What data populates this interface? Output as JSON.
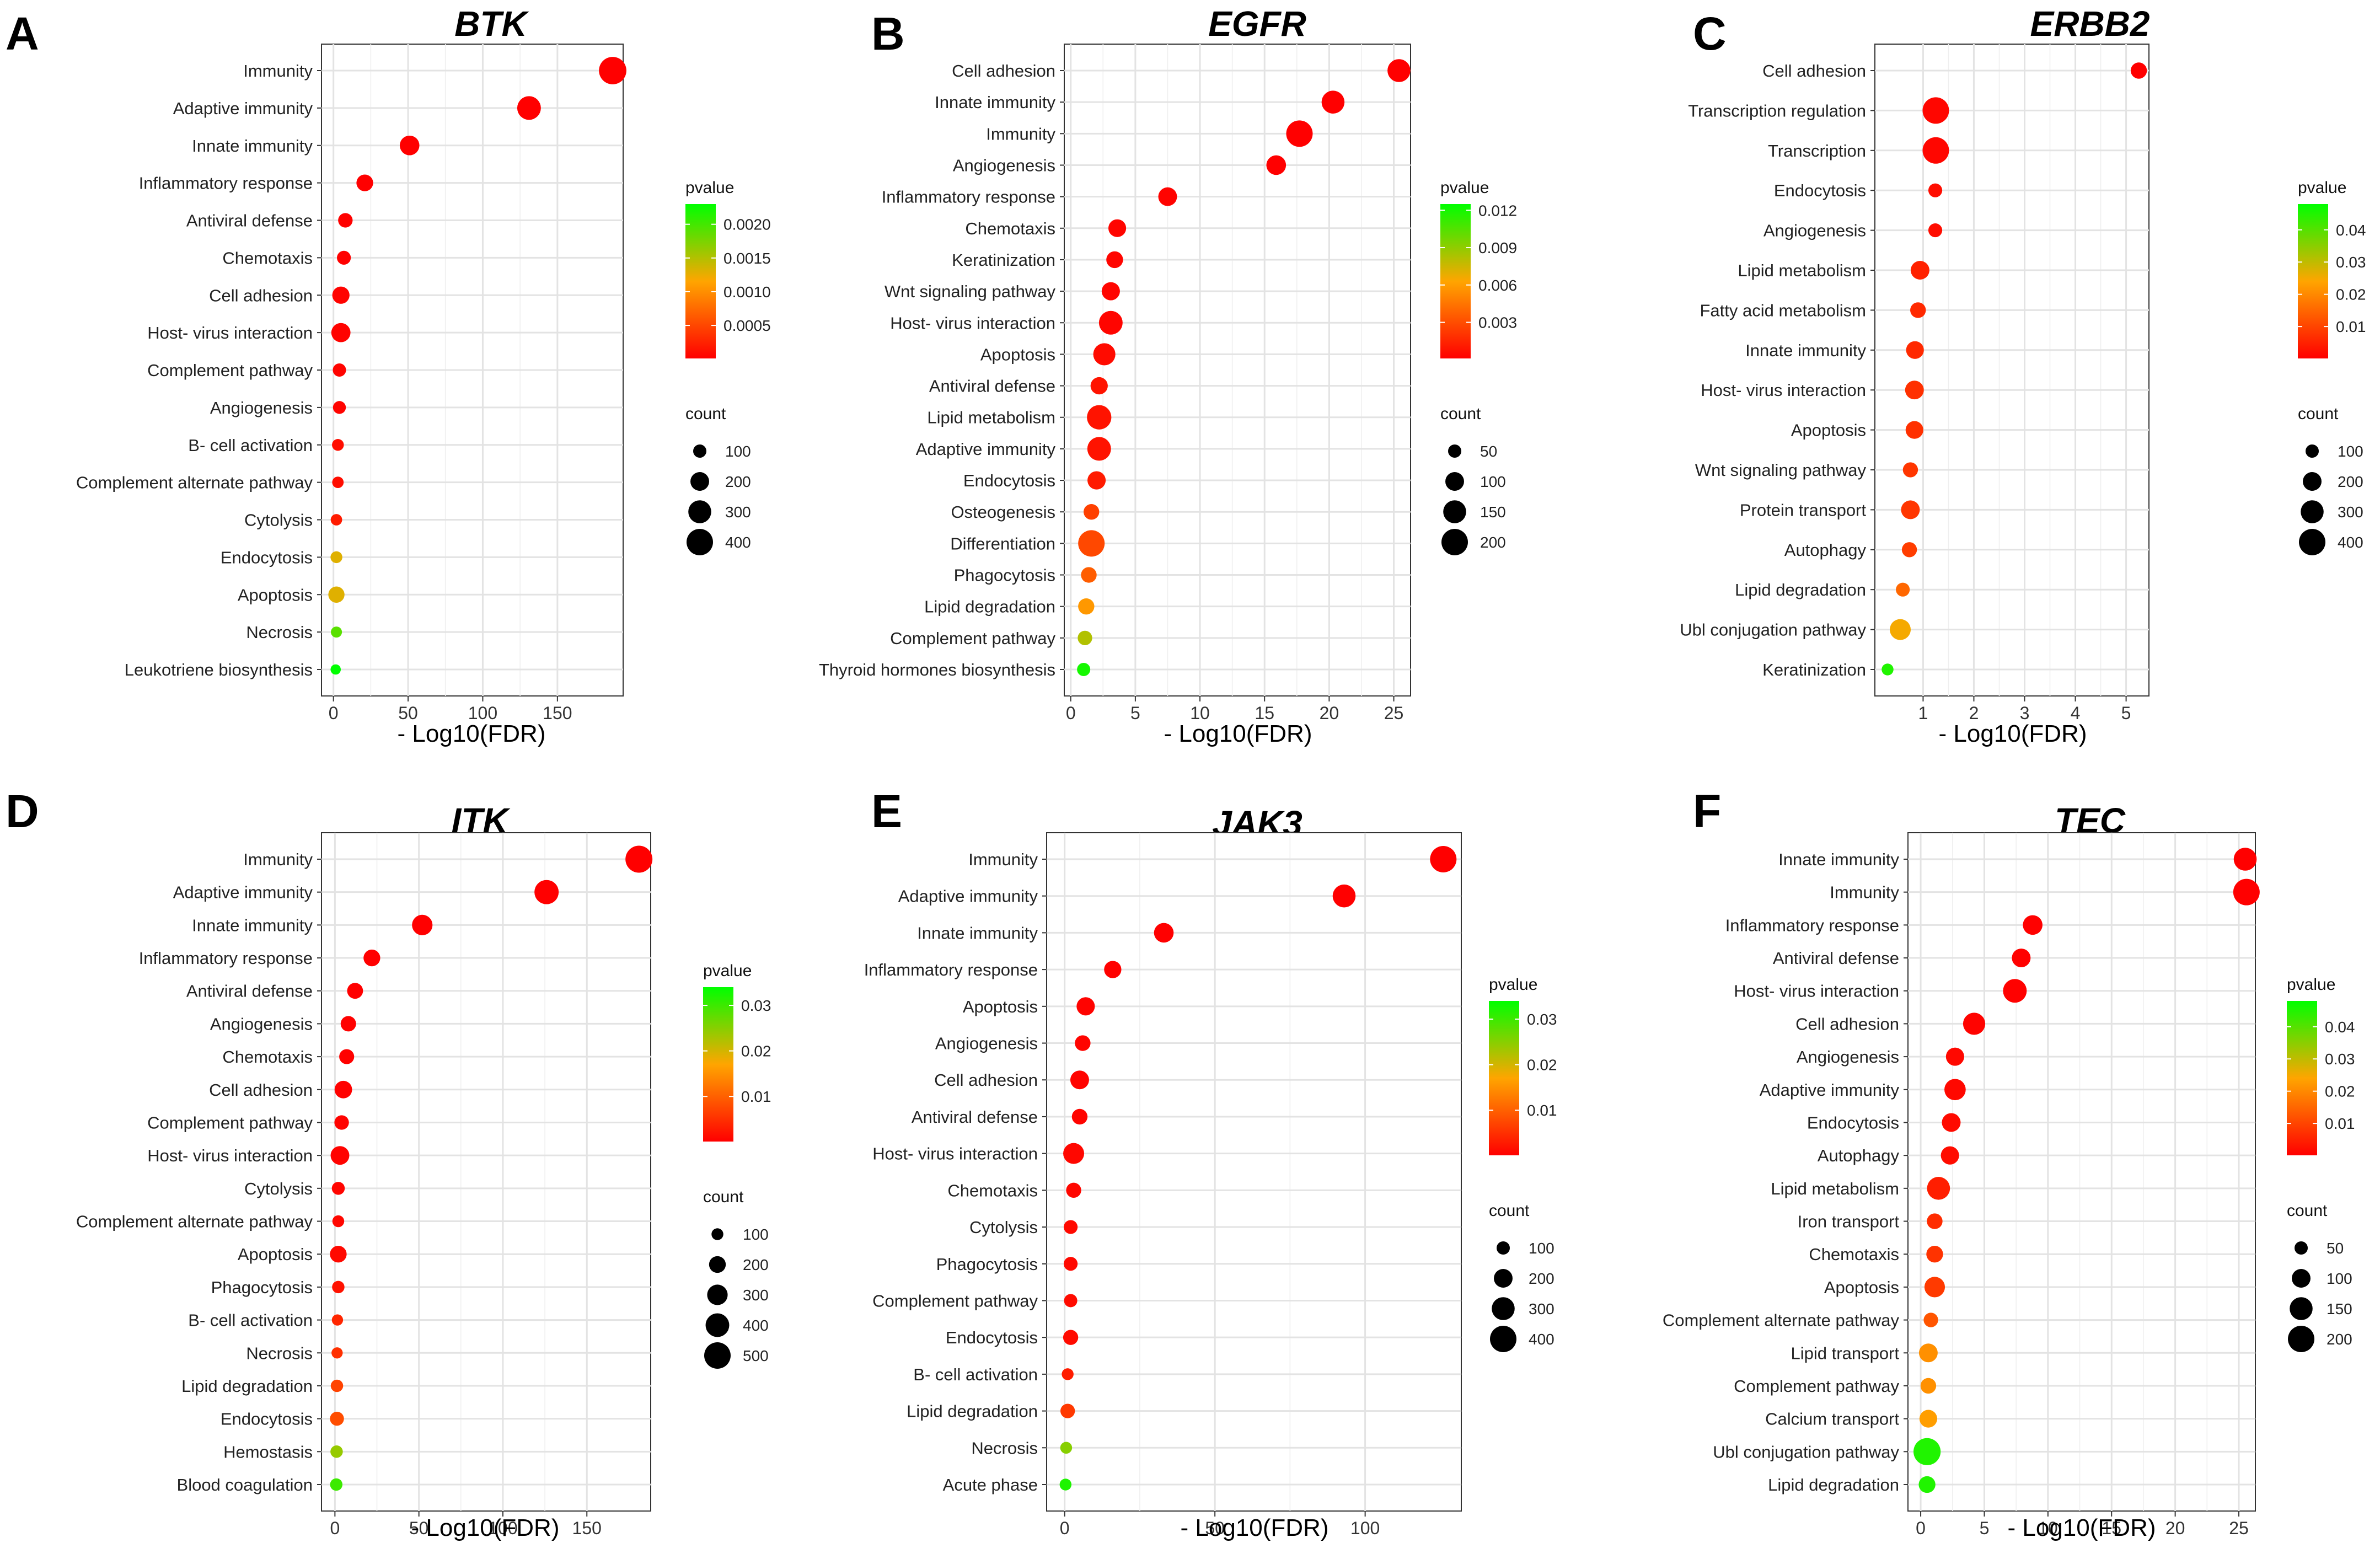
{
  "chart_data": [
    {
      "type": "scatter",
      "panel": "A",
      "title": "BTK",
      "xlabel": "- Log10(FDR)",
      "xlim": [
        -8,
        194
      ],
      "xticks": [
        0,
        50,
        100,
        150
      ],
      "tick_labels": [
        "0",
        "50",
        "100",
        "150"
      ],
      "categories": [
        "Immunity",
        "Adaptive immunity",
        "Innate immunity",
        "Inflammatory response",
        "Antiviral defense",
        "Chemotaxis",
        "Cell adhesion",
        "Host- virus interaction",
        "Complement pathway",
        "Angiogenesis",
        "B- cell activation",
        "Complement alternate pathway",
        "Cytolysis",
        "Endocytosis",
        "Apoptosis",
        "Necrosis",
        "Leukotriene biosynthesis"
      ],
      "x": [
        187,
        131,
        51,
        21,
        8,
        7,
        5,
        5,
        4,
        4,
        3,
        3,
        2,
        2,
        2,
        2,
        1.5
      ],
      "count": [
        430,
        320,
        220,
        160,
        120,
        110,
        170,
        210,
        100,
        95,
        80,
        75,
        75,
        80,
        150,
        70,
        60
      ],
      "pvalue": [
        1e-05,
        1e-05,
        1e-05,
        1e-05,
        2e-05,
        2e-05,
        3e-05,
        3e-05,
        4e-05,
        4e-05,
        0.0001,
        0.0001,
        0.0002,
        0.0013,
        0.0013,
        0.0019,
        0.0023
      ],
      "legend": {
        "pvalue_title": "pvalue",
        "pvalue_range": [
          1e-05,
          0.0023
        ],
        "pvalue_ticks": [
          0.002,
          0.0015,
          0.001,
          0.0005
        ],
        "pvalue_tick_labels": [
          "0.0020",
          "0.0015",
          "0.0010",
          "0.0005"
        ],
        "count_title": "count",
        "count_values": [
          100,
          200,
          300,
          400
        ],
        "count_labels": [
          "100",
          "200",
          "300",
          "400"
        ]
      }
    },
    {
      "type": "scatter",
      "panel": "B",
      "title": "EGFR",
      "xlabel": "- Log10(FDR)",
      "xlim": [
        -0.5,
        26.3
      ],
      "xticks": [
        0,
        5,
        10,
        15,
        20,
        25
      ],
      "tick_labels": [
        "0",
        "5",
        "10",
        "15",
        "20",
        "25"
      ],
      "categories": [
        "Cell adhesion",
        "Innate immunity",
        "Immunity",
        "Angiogenesis",
        "Inflammatory response",
        "Chemotaxis",
        "Keratinization",
        "Wnt signaling pathway",
        "Host- virus interaction",
        "Apoptosis",
        "Antiviral defense",
        "Lipid metabolism",
        "Adaptive immunity",
        "Endocytosis",
        "Osteogenesis",
        "Differentiation",
        "Phagocytosis",
        "Lipid degradation",
        "Complement pathway",
        "Thyroid hormones biosynthesis"
      ],
      "x": [
        25.4,
        20.3,
        17.7,
        15.9,
        7.5,
        3.6,
        3.4,
        3.1,
        3.1,
        2.6,
        2.2,
        2.2,
        2.2,
        2.0,
        1.6,
        1.6,
        1.4,
        1.2,
        1.1,
        1.0
      ],
      "count": [
        150,
        150,
        200,
        110,
        100,
        90,
        80,
        95,
        160,
        140,
        85,
        170,
        160,
        95,
        70,
        200,
        70,
        75,
        60,
        50
      ],
      "pvalue": [
        0.0001,
        0.0001,
        0.0001,
        0.0001,
        0.0002,
        0.0003,
        0.0003,
        0.0003,
        0.0003,
        0.0005,
        0.0008,
        0.0008,
        0.0008,
        0.0011,
        0.0025,
        0.0028,
        0.0036,
        0.0058,
        0.0082,
        0.012
      ],
      "legend": {
        "pvalue_title": "pvalue",
        "pvalue_range": [
          0.0001,
          0.0125
        ],
        "pvalue_ticks": [
          0.012,
          0.009,
          0.006,
          0.003
        ],
        "pvalue_tick_labels": [
          "0.012",
          "0.009",
          "0.006",
          "0.003"
        ],
        "count_title": "count",
        "count_values": [
          50,
          100,
          150,
          200
        ],
        "count_labels": [
          "50",
          "100",
          "150",
          "200"
        ]
      }
    },
    {
      "type": "scatter",
      "panel": "C",
      "title": "ERBB2",
      "xlabel": "- Log10(FDR)",
      "xlim": [
        0.05,
        5.45
      ],
      "xticks": [
        1,
        2,
        3,
        4,
        5
      ],
      "tick_labels": [
        "1",
        "2",
        "3",
        "4",
        "5"
      ],
      "categories": [
        "Cell adhesion",
        "Transcription regulation",
        "Transcription",
        "Endocytosis",
        "Angiogenesis",
        "Lipid metabolism",
        "Fatty acid metabolism",
        "Innate immunity",
        "Host- virus interaction",
        "Apoptosis",
        "Wnt signaling pathway",
        "Protein transport",
        "Autophagy",
        "Lipid degradation",
        "Ubl conjugation pathway",
        "Keratinization"
      ],
      "x": [
        5.25,
        1.25,
        1.25,
        1.24,
        1.24,
        0.94,
        0.9,
        0.84,
        0.83,
        0.83,
        0.75,
        0.75,
        0.73,
        0.6,
        0.55,
        0.3
      ],
      "count": [
        150,
        400,
        400,
        110,
        110,
        200,
        140,
        180,
        200,
        180,
        130,
        200,
        130,
        110,
        250,
        80
      ],
      "pvalue": [
        0.0001,
        0.001,
        0.001,
        0.002,
        0.002,
        0.005,
        0.006,
        0.006,
        0.007,
        0.007,
        0.008,
        0.008,
        0.009,
        0.015,
        0.025,
        0.045
      ],
      "legend": {
        "pvalue_title": "pvalue",
        "pvalue_range": [
          0.0001,
          0.048
        ],
        "pvalue_ticks": [
          0.04,
          0.03,
          0.02,
          0.01
        ],
        "pvalue_tick_labels": [
          "0.04",
          "0.03",
          "0.02",
          "0.01"
        ],
        "count_title": "count",
        "count_values": [
          100,
          200,
          300,
          400
        ],
        "count_labels": [
          "100",
          "200",
          "300",
          "400"
        ]
      }
    },
    {
      "type": "scatter",
      "panel": "D",
      "title": "ITK",
      "xlabel": "- Log10(FDR)",
      "xlim": [
        -8,
        188
      ],
      "xticks": [
        0,
        50,
        100,
        150
      ],
      "tick_labels": [
        "0",
        "50",
        "100",
        "150"
      ],
      "categories": [
        "Immunity",
        "Adaptive immunity",
        "Innate immunity",
        "Inflammatory response",
        "Antiviral defense",
        "Angiogenesis",
        "Chemotaxis",
        "Cell adhesion",
        "Complement pathway",
        "Host- virus interaction",
        "Cytolysis",
        "Complement alternate pathway",
        "Apoptosis",
        "Phagocytosis",
        "B- cell activation",
        "Necrosis",
        "Lipid degradation",
        "Endocytosis",
        "Hemostasis",
        "Blood coagulation"
      ],
      "x": [
        181,
        126,
        52,
        22,
        12,
        8,
        7,
        5,
        4,
        3,
        2,
        2,
        2,
        2,
        1.5,
        1.3,
        1.2,
        1.2,
        1,
        0.8
      ],
      "count": [
        520,
        420,
        300,
        200,
        180,
        170,
        160,
        220,
        150,
        250,
        120,
        100,
        200,
        110,
        90,
        90,
        110,
        140,
        110,
        110
      ],
      "pvalue": [
        0.0001,
        0.0001,
        0.0001,
        0.0001,
        0.0001,
        0.0002,
        0.0002,
        0.0003,
        0.0004,
        0.0004,
        0.0006,
        0.0008,
        0.001,
        0.002,
        0.004,
        0.005,
        0.007,
        0.008,
        0.024,
        0.03
      ],
      "legend": {
        "pvalue_title": "pvalue",
        "pvalue_range": [
          0.0001,
          0.034
        ],
        "pvalue_ticks": [
          0.03,
          0.02,
          0.01
        ],
        "pvalue_tick_labels": [
          "0.03",
          "0.02",
          "0.01"
        ],
        "count_title": "count",
        "count_values": [
          100,
          200,
          300,
          400,
          500
        ],
        "count_labels": [
          "100",
          "200",
          "300",
          "400",
          "500"
        ]
      }
    },
    {
      "type": "scatter",
      "panel": "E",
      "title": "JAK3",
      "xlabel": "- Log10(FDR)",
      "xlim": [
        -6,
        132
      ],
      "xticks": [
        0,
        50,
        100
      ],
      "tick_labels": [
        "0",
        "50",
        "100"
      ],
      "categories": [
        "Immunity",
        "Adaptive immunity",
        "Innate immunity",
        "Inflammatory response",
        "Apoptosis",
        "Angiogenesis",
        "Cell adhesion",
        "Antiviral defense",
        "Host- virus interaction",
        "Chemotaxis",
        "Cytolysis",
        "Phagocytosis",
        "Complement pathway",
        "Endocytosis",
        "B- cell activation",
        "Lipid degradation",
        "Necrosis",
        "Acute phase"
      ],
      "x": [
        126,
        93,
        33,
        16,
        7,
        6,
        5,
        5,
        3,
        3,
        2,
        2,
        2,
        2,
        1,
        1,
        0.5,
        0.3
      ],
      "count": [
        400,
        300,
        220,
        170,
        190,
        140,
        200,
        140,
        250,
        130,
        110,
        110,
        100,
        130,
        80,
        120,
        80,
        80
      ],
      "pvalue": [
        0.0001,
        0.0001,
        0.0001,
        0.0002,
        0.0004,
        0.0005,
        0.0005,
        0.0005,
        0.0008,
        0.0008,
        0.001,
        0.001,
        0.0012,
        0.0012,
        0.003,
        0.006,
        0.025,
        0.032
      ],
      "legend": {
        "pvalue_title": "pvalue",
        "pvalue_range": [
          0.0001,
          0.034
        ],
        "pvalue_ticks": [
          0.03,
          0.02,
          0.01
        ],
        "pvalue_tick_labels": [
          "0.03",
          "0.02",
          "0.01"
        ],
        "count_title": "count",
        "count_values": [
          100,
          200,
          300,
          400
        ],
        "count_labels": [
          "100",
          "200",
          "300",
          "400"
        ]
      }
    },
    {
      "type": "scatter",
      "panel": "F",
      "title": "TEC",
      "xlabel": "- Log10(FDR)",
      "xlim": [
        -1.0,
        26.3
      ],
      "xticks": [
        0,
        5,
        10,
        15,
        20,
        25
      ],
      "tick_labels": [
        "0",
        "5",
        "10",
        "15",
        "20",
        "25"
      ],
      "categories": [
        "Innate immunity",
        "Immunity",
        "Inflammatory response",
        "Antiviral defense",
        "Host- virus interaction",
        "Cell adhesion",
        "Angiogenesis",
        "Adaptive immunity",
        "Endocytosis",
        "Autophagy",
        "Lipid metabolism",
        "Iron transport",
        "Chemotaxis",
        "Apoptosis",
        "Complement alternate pathway",
        "Lipid transport",
        "Complement pathway",
        "Calcium transport",
        "Ubl conjugation pathway",
        "Lipid degradation"
      ],
      "x": [
        25.5,
        25.6,
        8.8,
        7.9,
        7.4,
        4.2,
        2.7,
        2.7,
        2.4,
        2.3,
        1.4,
        1.1,
        1.1,
        1.1,
        0.8,
        0.6,
        0.6,
        0.6,
        0.5,
        0.5
      ],
      "count": [
        150,
        200,
        110,
        100,
        160,
        140,
        95,
        130,
        100,
        95,
        150,
        70,
        80,
        120,
        60,
        100,
        70,
        90,
        210,
        80
      ],
      "pvalue": [
        0.0001,
        0.0001,
        0.0002,
        0.0002,
        0.0002,
        0.0005,
        0.0012,
        0.0012,
        0.0015,
        0.0018,
        0.0045,
        0.0065,
        0.0075,
        0.0085,
        0.0125,
        0.021,
        0.021,
        0.023,
        0.045,
        0.045
      ],
      "legend": {
        "pvalue_title": "pvalue",
        "pvalue_range": [
          0.0001,
          0.048
        ],
        "pvalue_ticks": [
          0.04,
          0.03,
          0.02,
          0.01
        ],
        "pvalue_tick_labels": [
          "0.04",
          "0.03",
          "0.02",
          "0.01"
        ],
        "count_title": "count",
        "count_values": [
          50,
          100,
          150,
          200
        ],
        "count_labels": [
          "50",
          "100",
          "150",
          "200"
        ]
      }
    }
  ]
}
